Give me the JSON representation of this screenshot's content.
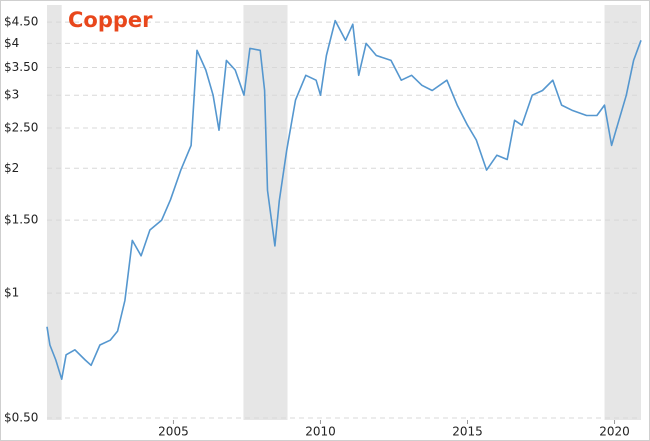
{
  "chart_data": {
    "type": "line",
    "title": "Copper",
    "x": [
      2000.7,
      2000.8,
      2001.0,
      2001.2,
      2001.35,
      2001.65,
      2002.0,
      2002.2,
      2002.5,
      2002.85,
      2003.1,
      2003.35,
      2003.6,
      2003.9,
      2004.2,
      2004.6,
      2004.9,
      2005.25,
      2005.6,
      2005.8,
      2006.1,
      2006.35,
      2006.55,
      2006.8,
      2007.1,
      2007.4,
      2007.6,
      2007.95,
      2008.1,
      2008.2,
      2008.45,
      2008.6,
      2008.85,
      2009.15,
      2009.5,
      2009.85,
      2010.0,
      2010.2,
      2010.5,
      2010.85,
      2011.1,
      2011.3,
      2011.55,
      2011.9,
      2012.4,
      2012.75,
      2013.1,
      2013.45,
      2013.8,
      2014.3,
      2014.65,
      2015.0,
      2015.3,
      2015.65,
      2016.0,
      2016.35,
      2016.6,
      2016.85,
      2017.2,
      2017.55,
      2017.9,
      2018.2,
      2018.55,
      2019.05,
      2019.4,
      2019.66,
      2019.9,
      2020.05,
      2020.4,
      2020.65,
      2020.9
    ],
    "series": [
      {
        "color": "#5597cf",
        "values": [
          0.83,
          0.75,
          0.69,
          0.62,
          0.71,
          0.73,
          0.69,
          0.67,
          0.75,
          0.77,
          0.81,
          0.96,
          1.34,
          1.23,
          1.42,
          1.5,
          1.68,
          1.98,
          2.27,
          3.85,
          3.45,
          3.0,
          2.47,
          3.64,
          3.45,
          3.0,
          3.89,
          3.85,
          3.08,
          1.77,
          1.3,
          1.67,
          2.21,
          2.92,
          3.35,
          3.26,
          3.0,
          3.74,
          4.54,
          4.07,
          4.45,
          3.35,
          4.0,
          3.74,
          3.64,
          3.26,
          3.35,
          3.17,
          3.08,
          3.26,
          2.84,
          2.54,
          2.34,
          1.98,
          2.15,
          2.1,
          2.61,
          2.54,
          3.0,
          3.08,
          3.26,
          2.84,
          2.76,
          2.68,
          2.68,
          2.84,
          2.27,
          2.47,
          3.0,
          3.64,
          4.07
        ]
      }
    ],
    "shaded_ranges": [
      [
        2000.7,
        2001.2
      ],
      [
        2007.38,
        2008.88
      ],
      [
        2019.66,
        2020.9
      ]
    ],
    "xlim": [
      2000.7,
      2020.9
    ],
    "xticks": [
      2005,
      2010,
      2015,
      2020
    ],
    "ylim": [
      0.5,
      4.95
    ],
    "log_scale": true,
    "grid": true,
    "yticks": [
      {
        "value": 0.5,
        "label": "$0.50"
      },
      {
        "value": 1,
        "label": "$1"
      },
      {
        "value": 1.5,
        "label": "$1.50"
      },
      {
        "value": 2,
        "label": "$2"
      },
      {
        "value": 2.5,
        "label": "$2.50"
      },
      {
        "value": 3,
        "label": "$3"
      },
      {
        "value": 3.5,
        "label": "$3.50"
      },
      {
        "value": 4,
        "label": "$4"
      },
      {
        "value": 4.5,
        "label": "$4.50"
      }
    ]
  }
}
